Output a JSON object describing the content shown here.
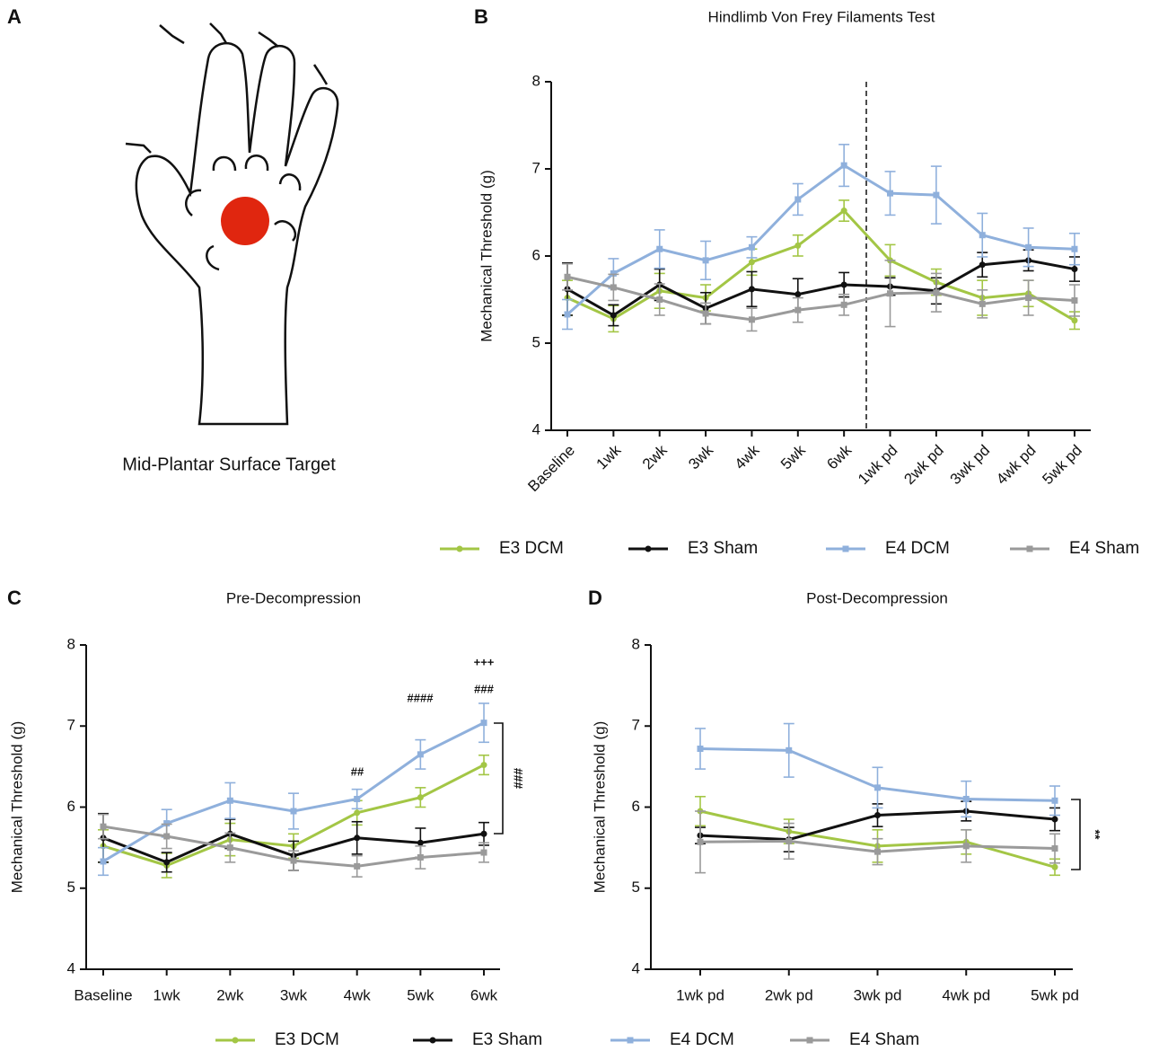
{
  "figure": {
    "panel_labels": [
      "A",
      "B",
      "C",
      "D"
    ],
    "caption": "Mid-Plantar Surface Target"
  },
  "chart_data": [
    {
      "type": "line",
      "title": "Hindlimb Von Frey Filaments Test",
      "y_label": "Mechanical Threshold (g)",
      "categories": [
        "Baseline",
        "1wk",
        "2wk",
        "3wk",
        "4wk",
        "5wk",
        "6wk",
        "1wk pd",
        "2wk pd",
        "3wk pd",
        "4wk pd",
        "5wk pd"
      ],
      "ylim": [
        4,
        8
      ],
      "yticks": [
        4,
        5,
        6,
        7,
        8
      ],
      "legend": "bottom",
      "series": [
        {
          "name": "E3 DCM",
          "color": "#a3c645",
          "marker": "circle",
          "values": [
            5.52,
            5.28,
            5.6,
            5.52,
            5.93,
            6.12,
            6.52,
            5.95,
            5.7,
            5.52,
            5.57,
            5.26
          ],
          "errors": [
            0.2,
            0.15,
            0.2,
            0.15,
            0.15,
            0.12,
            0.12,
            0.18,
            0.15,
            0.2,
            0.15,
            0.1
          ]
        },
        {
          "name": "E3 Sham",
          "color": "#111111",
          "marker": "circle",
          "values": [
            5.62,
            5.32,
            5.67,
            5.4,
            5.62,
            5.56,
            5.67,
            5.65,
            5.6,
            5.9,
            5.95,
            5.85
          ],
          "errors": [
            0.3,
            0.12,
            0.18,
            0.18,
            0.2,
            0.18,
            0.14,
            0.1,
            0.15,
            0.14,
            0.12,
            0.14
          ]
        },
        {
          "name": "E4 DCM",
          "color": "#8fb0dc",
          "marker": "square",
          "values": [
            5.33,
            5.8,
            6.08,
            5.95,
            6.1,
            6.65,
            7.04,
            6.72,
            6.7,
            6.24,
            6.1,
            6.08
          ],
          "errors": [
            0.17,
            0.17,
            0.22,
            0.22,
            0.12,
            0.18,
            0.24,
            0.25,
            0.33,
            0.25,
            0.22,
            0.18
          ]
        },
        {
          "name": "E4 Sham",
          "color": "#9a9a9a",
          "marker": "square",
          "values": [
            5.76,
            5.64,
            5.5,
            5.34,
            5.27,
            5.38,
            5.44,
            5.57,
            5.58,
            5.45,
            5.52,
            5.49
          ],
          "errors": [
            0.15,
            0.15,
            0.18,
            0.12,
            0.13,
            0.14,
            0.12,
            0.38,
            0.22,
            0.16,
            0.2,
            0.18
          ]
        }
      ]
    },
    {
      "type": "line",
      "title": "Pre-Decompression",
      "y_label": "Mechanical Threshold (g)",
      "categories": [
        "Baseline",
        "1wk",
        "2wk",
        "3wk",
        "4wk",
        "5wk",
        "6wk"
      ],
      "ylim": [
        4,
        8
      ],
      "yticks": [
        4,
        5,
        6,
        7,
        8
      ],
      "legend": "bottom",
      "annotations": [
        "##",
        "####",
        "###",
        "+++"
      ],
      "bracket_label": "###",
      "series": [
        {
          "name": "E3 DCM",
          "color": "#a3c645",
          "marker": "circle",
          "values": [
            5.52,
            5.28,
            5.6,
            5.52,
            5.93,
            6.12,
            6.52
          ],
          "errors": [
            0.2,
            0.15,
            0.2,
            0.15,
            0.15,
            0.12,
            0.12
          ]
        },
        {
          "name": "E3 Sham",
          "color": "#111111",
          "marker": "circle",
          "values": [
            5.62,
            5.32,
            5.67,
            5.4,
            5.62,
            5.56,
            5.67
          ],
          "errors": [
            0.3,
            0.12,
            0.18,
            0.18,
            0.2,
            0.18,
            0.14
          ]
        },
        {
          "name": "E4 DCM",
          "color": "#8fb0dc",
          "marker": "square",
          "values": [
            5.33,
            5.8,
            6.08,
            5.95,
            6.1,
            6.65,
            7.04
          ],
          "errors": [
            0.17,
            0.17,
            0.22,
            0.22,
            0.12,
            0.18,
            0.24
          ]
        },
        {
          "name": "E4 Sham",
          "color": "#9a9a9a",
          "marker": "square",
          "values": [
            5.76,
            5.64,
            5.5,
            5.34,
            5.27,
            5.38,
            5.44
          ],
          "errors": [
            0.15,
            0.15,
            0.18,
            0.12,
            0.13,
            0.14,
            0.12
          ]
        }
      ]
    },
    {
      "type": "line",
      "title": "Post-Decompression",
      "y_label": "Mechanical Threshold (g)",
      "categories": [
        "1wk pd",
        "2wk pd",
        "3wk pd",
        "4wk pd",
        "5wk pd"
      ],
      "ylim": [
        4,
        8
      ],
      "yticks": [
        4,
        5,
        6,
        7,
        8
      ],
      "bracket_label": "**",
      "series": [
        {
          "color": "#a3c645",
          "marker": "circle",
          "values": [
            5.95,
            5.7,
            5.52,
            5.57,
            5.26
          ],
          "errors": [
            0.18,
            0.15,
            0.2,
            0.15,
            0.1
          ]
        },
        {
          "color": "#111111",
          "marker": "circle",
          "values": [
            5.65,
            5.6,
            5.9,
            5.95,
            5.85
          ],
          "errors": [
            0.1,
            0.15,
            0.14,
            0.12,
            0.14
          ]
        },
        {
          "color": "#8fb0dc",
          "marker": "square",
          "values": [
            6.72,
            6.7,
            6.24,
            6.1,
            6.08
          ],
          "errors": [
            0.25,
            0.33,
            0.25,
            0.22,
            0.18
          ]
        },
        {
          "color": "#9a9a9a",
          "marker": "square",
          "values": [
            5.57,
            5.58,
            5.45,
            5.52,
            5.49
          ],
          "errors": [
            0.38,
            0.22,
            0.16,
            0.2,
            0.18
          ]
        }
      ]
    }
  ]
}
